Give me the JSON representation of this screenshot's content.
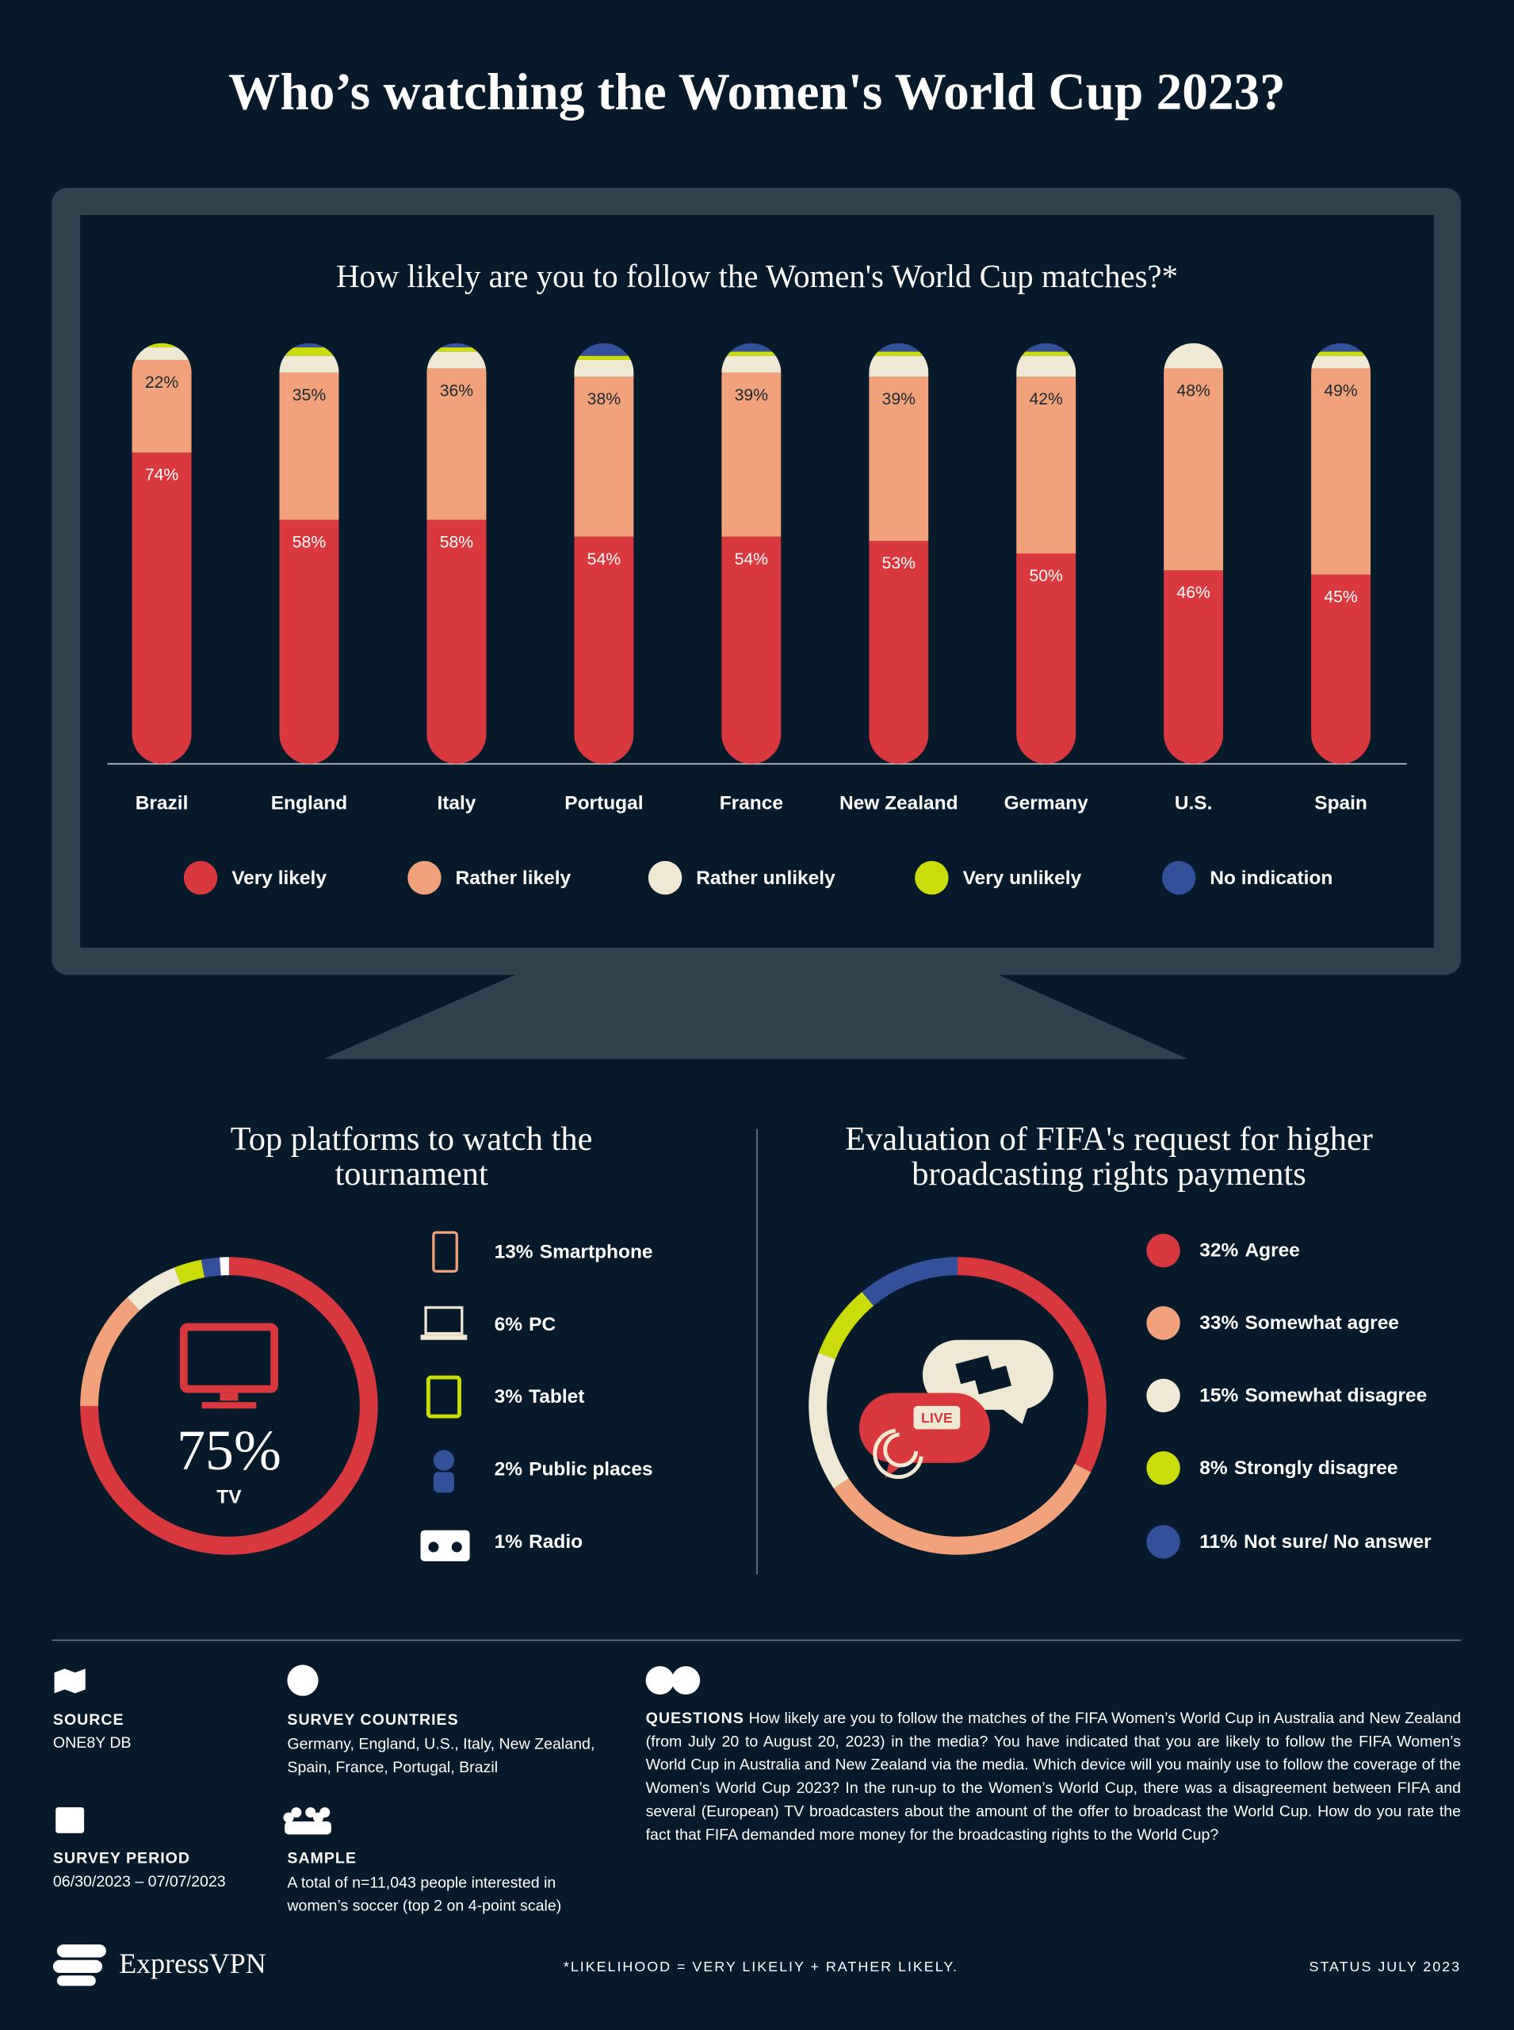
{
  "title": "Who’s watching the Women's World Cup 2023?",
  "chart_data": [
    {
      "type": "stacked_bar",
      "title": "How likely are you to follow the Women's World Cup matches?*",
      "categories": [
        "Brazil",
        "England",
        "Italy",
        "Portugal",
        "France",
        "New Zealand",
        "Germany",
        "U.S.",
        "Spain"
      ],
      "ylim": [
        0,
        100
      ],
      "series": [
        {
          "name": "Very likely",
          "color": "#d9383e",
          "values": [
            74,
            58,
            58,
            54,
            54,
            53,
            50,
            46,
            45
          ],
          "value_labels": [
            "74%",
            "58%",
            "58%",
            "54%",
            "54%",
            "53%",
            "50%",
            "46%",
            "45%"
          ]
        },
        {
          "name": "Rather likely",
          "color": "#f2a27a",
          "values": [
            22,
            35,
            36,
            38,
            39,
            39,
            42,
            48,
            49
          ],
          "value_labels": [
            "22%",
            "35%",
            "36%",
            "38%",
            "39%",
            "39%",
            "42%",
            "48%",
            "49%"
          ]
        },
        {
          "name": "Rather unlikely",
          "color": "#efe8d3",
          "values": [
            3,
            4,
            4,
            4,
            4,
            5,
            5,
            6,
            3
          ]
        },
        {
          "name": "Very unlikely",
          "color": "#cbdc0b",
          "values": [
            1,
            2,
            1,
            1,
            1,
            1,
            1,
            0,
            1
          ]
        },
        {
          "name": "No indication",
          "color": "#34509a",
          "values": [
            0,
            1,
            1,
            3,
            2,
            2,
            2,
            0,
            2
          ]
        }
      ]
    },
    {
      "type": "donut",
      "title": "Top platforms to watch the tournament",
      "categories": [
        "TV",
        "Smartphone",
        "PC",
        "Tablet",
        "Public places",
        "Radio"
      ],
      "values": [
        75,
        13,
        6,
        3,
        2,
        1
      ],
      "value_labels": [
        "75%",
        "13%",
        "6%",
        "3%",
        "2%",
        "1%"
      ],
      "colors": [
        "#d9383e",
        "#f2a27a",
        "#efe8d3",
        "#cbdc0b",
        "#34509a",
        "#ffffff"
      ]
    },
    {
      "type": "donut",
      "title": "Evaluation of FIFA's request for higher broadcasting rights payments",
      "categories": [
        "Agree",
        "Somewhat agree",
        "Somewhat disagree",
        "Strongly disagree",
        "Not sure/ No answer"
      ],
      "values": [
        32,
        33,
        15,
        8,
        11
      ],
      "value_labels": [
        "32%",
        "33%",
        "15%",
        "8%",
        "11%"
      ],
      "colors": [
        "#d9383e",
        "#f2a27a",
        "#efe8d3",
        "#cbdc0b",
        "#34509a"
      ]
    }
  ],
  "footer": {
    "source_label": "SOURCE",
    "source": "ONE8Y DB",
    "countries_label": "SURVEY COUNTRIES",
    "countries": "Germany, England, U.S., Italy, New Zealand, Spain, France, Portugal, Brazil",
    "period_label": "SURVEY PERIOD",
    "period": "06/30/2023 – 07/07/2023",
    "sample_label": "SAMPLE",
    "sample": "A total of n=11,043 people interested in women’s soccer (top 2 on 4-point scale)",
    "questions_label": "QUESTIONS",
    "questions": "How likely are you to follow the matches of the FIFA Women’s World Cup in Australia and New Zealand (from July 20 to August 20, 2023) in the media? You have indicated that you are likely to follow the FIFA Women’s World Cup in Australia and New Zealand via the media. Which device will you mainly use to follow the coverage of the Women’s World Cup 2023? In the run-up to the Women’s World Cup, there was a disagreement between FIFA and several (European) TV broadcasters about the amount of the offer to broadcast the World Cup. How do you rate the fact that FIFA demanded more money for the broadcasting rights to the World Cup?",
    "brand": "ExpressVPN",
    "footnote": "*LIKELIHOOD = VERY LIKELIY + RATHER LIKELY.",
    "status": "STATUS JULY 2023"
  }
}
